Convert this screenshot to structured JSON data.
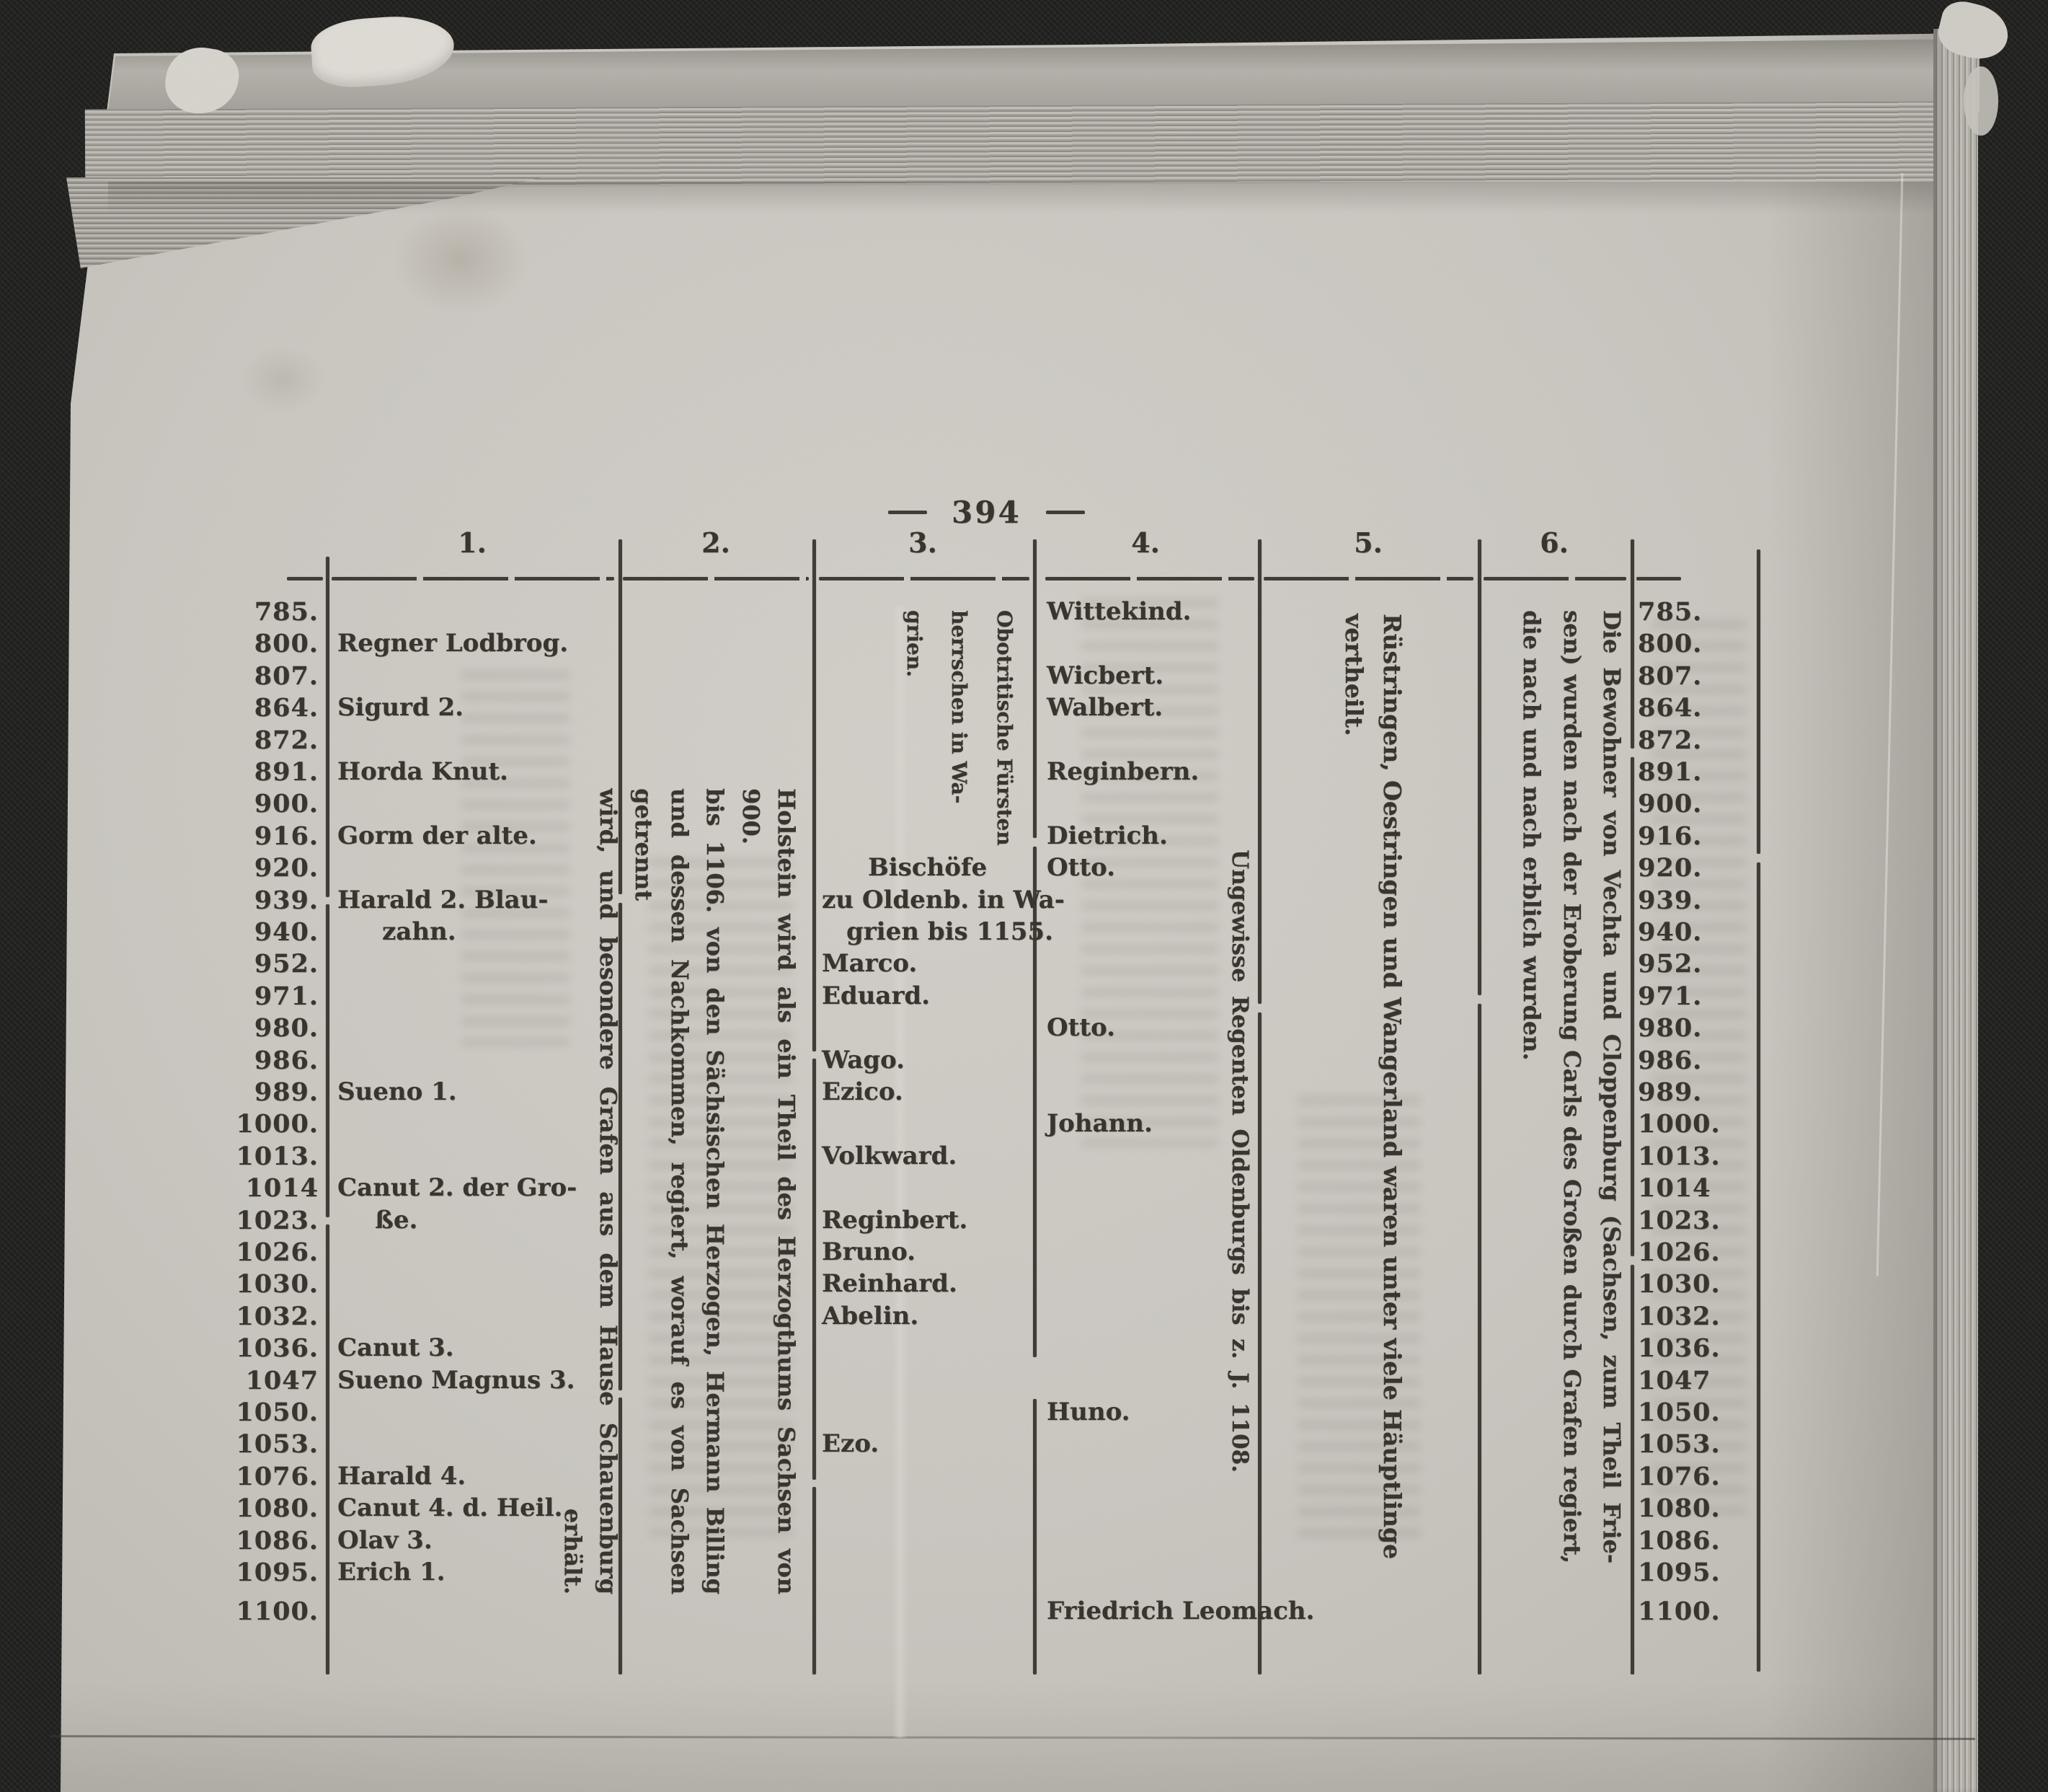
{
  "page": {
    "number": "394"
  },
  "colors": {
    "paper": "#cac7c1",
    "ink": "#35312b",
    "background": "#1a1a19"
  },
  "table": {
    "column_headers": [
      "1.",
      "2.",
      "3.",
      "4.",
      "5.",
      "6."
    ],
    "years": [
      "785.",
      "800.",
      "807.",
      "864.",
      "872.",
      "891.",
      "900.",
      "916.",
      "920.",
      "939.",
      "940.",
      "952.",
      "971.",
      "980.",
      "986.",
      "989.",
      "1000.",
      "1013.",
      "1014",
      "1023.",
      "1026.",
      "1030.",
      "1032.",
      "1036.",
      "1047",
      "1050.",
      "1053.",
      "1076.",
      "1080.",
      "1086.",
      "1095.",
      "1100."
    ],
    "columns": [
      {
        "id": "col1",
        "entries": [
          {
            "row": "800.",
            "text": "Regner Lodbrog."
          },
          {
            "row": "864.",
            "text": "Sigurd 2."
          },
          {
            "row": "891.",
            "text": "Horda Knut."
          },
          {
            "row": "916.",
            "text": "Gorm der alte."
          },
          {
            "row": "939.",
            "text": "Harald 2. Blau-"
          },
          {
            "row": "940.",
            "text": "zahn."
          },
          {
            "row": "989.",
            "text": "Sueno 1."
          },
          {
            "row": "1014",
            "text": "Canut 2. der Gro-"
          },
          {
            "row": "1023.",
            "text": "ße."
          },
          {
            "row": "1036.",
            "text": "Canut 3."
          },
          {
            "row": "1047",
            "text": "Sueno Magnus 3."
          },
          {
            "row": "1076.",
            "text": "Harald 4."
          },
          {
            "row": "1080.",
            "text": "Canut 4. d. Heil."
          },
          {
            "row": "1086.",
            "text": "Olav 3."
          },
          {
            "row": "1095.",
            "text": "Erich 1."
          }
        ]
      },
      {
        "id": "col2",
        "rotated_lines": [
          "Holstein wird als ein Theil des Herzogthums Sachsen von 900.",
          "bis 1106. von den Sächsischen Herzogen, Hermann Billing",
          "und dessen Nachkommen, regiert, worauf es von Sachsen getrennt",
          "wird, und besondere Grafen aus dem Hause Schauenburg",
          "erhält."
        ]
      },
      {
        "id": "col3",
        "rotated_lines": [
          "Obotritische Fürsten",
          "herrschen in Wa-",
          "grien."
        ],
        "entries": [
          {
            "row": "920.",
            "text": "Bischöfe"
          },
          {
            "row": "939.",
            "text": "zu Oldenb. in Wa-"
          },
          {
            "row": "940.",
            "text": "grien bis 1155."
          },
          {
            "row": "952.",
            "text": "Marco."
          },
          {
            "row": "971.",
            "text": "Eduard."
          },
          {
            "row": "986.",
            "text": "Wago."
          },
          {
            "row": "989.",
            "text": "Ezico."
          },
          {
            "row": "1013.",
            "text": "Volkward."
          },
          {
            "row": "1023.",
            "text": "Reginbert."
          },
          {
            "row": "1026.",
            "text": "Bruno."
          },
          {
            "row": "1030.",
            "text": "Reinhard."
          },
          {
            "row": "1032.",
            "text": "Abelin."
          },
          {
            "row": "1053.",
            "text": "Ezo."
          }
        ]
      },
      {
        "id": "col4",
        "entries": [
          {
            "row": "785.",
            "text": "Wittekind."
          },
          {
            "row": "807.",
            "text": "Wicbert."
          },
          {
            "row": "864.",
            "text": "Walbert."
          },
          {
            "row": "891.",
            "text": "Reginbern."
          },
          {
            "row": "916.",
            "text": "Dietrich."
          },
          {
            "row": "920.",
            "text": "Otto."
          },
          {
            "row": "980.",
            "text": "Otto."
          },
          {
            "row": "1000.",
            "text": "Johann."
          },
          {
            "row": "1050.",
            "text": "Huno."
          },
          {
            "row": "1100.",
            "text": "Friedrich Leomach."
          }
        ],
        "rotated_lines": [
          "Ungewisse Regenten Oldenburgs bis z. J. 1108."
        ]
      },
      {
        "id": "col5",
        "rotated_lines": [
          "Rüstringen, Oestringen und Wangerland waren unter viele Häuptlinge",
          "vertheilt."
        ]
      },
      {
        "id": "col6",
        "rotated_lines": [
          "Die Bewohner von Vechta und Cloppenburg (Sachsen, zum Theil Frie-",
          "sen) wurden nach der Eroberung Carls des Großen durch Grafen regiert,",
          "die nach und nach erblich wurden."
        ]
      }
    ]
  }
}
